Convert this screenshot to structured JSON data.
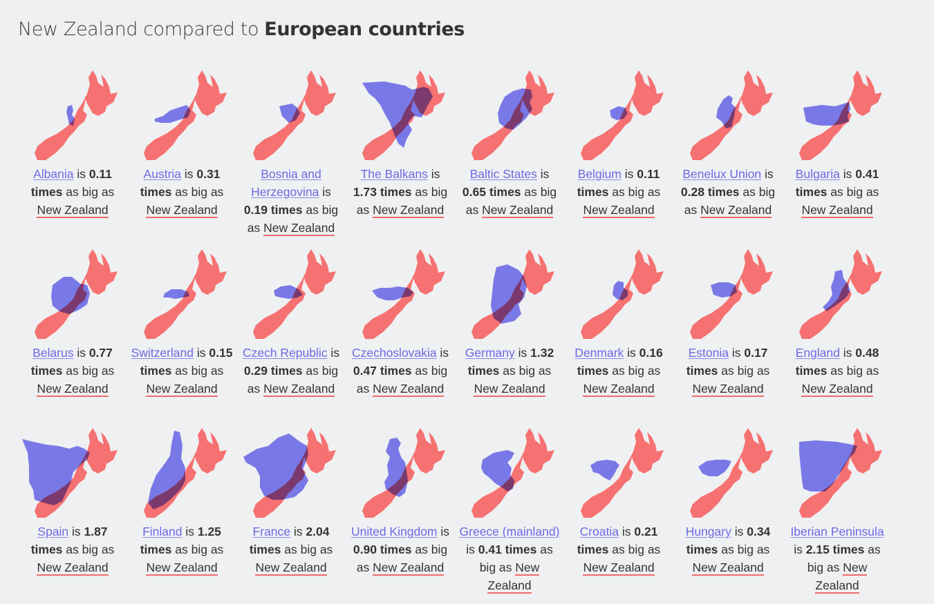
{
  "page": {
    "title_prefix": "New Zealand compared to ",
    "title_bold": "European countries"
  },
  "labels": {
    "is": " is ",
    "times_as_big_as": " as big as ",
    "reference": "New Zealand"
  },
  "colors": {
    "new_zealand": "#f67171",
    "country": "#6b68f4",
    "link": "#6c69e6",
    "underline": "#f06a6a"
  },
  "countries": [
    {
      "name": "Albania",
      "factor": "0.11 times"
    },
    {
      "name": "Austria",
      "factor": "0.31 times"
    },
    {
      "name": "Bosnia and Herzegovina",
      "factor": "0.19 times"
    },
    {
      "name": "The Balkans",
      "factor": "1.73 times"
    },
    {
      "name": "Baltic States",
      "factor": "0.65 times"
    },
    {
      "name": "Belgium",
      "factor": "0.11 times"
    },
    {
      "name": "Benelux Union",
      "factor": "0.28 times"
    },
    {
      "name": "Bulgaria",
      "factor": "0.41 times"
    },
    {
      "name": "Belarus",
      "factor": "0.77 times"
    },
    {
      "name": "Switzerland",
      "factor": "0.15 times"
    },
    {
      "name": "Czech Republic",
      "factor": "0.29 times"
    },
    {
      "name": "Czechoslovakia",
      "factor": "0.47 times"
    },
    {
      "name": "Germany",
      "factor": "1.32 times"
    },
    {
      "name": "Denmark",
      "factor": "0.16 times"
    },
    {
      "name": "Estonia",
      "factor": "0.17 times"
    },
    {
      "name": "England",
      "factor": "0.48 times"
    },
    {
      "name": "Spain",
      "factor": "1.87 times"
    },
    {
      "name": "Finland",
      "factor": "1.25 times"
    },
    {
      "name": "France",
      "factor": "2.04 times"
    },
    {
      "name": "United Kingdom",
      "factor": "0.90 times"
    },
    {
      "name": "Greece (mainland)",
      "factor": "0.41 times"
    },
    {
      "name": "Croatia",
      "factor": "0.21 times"
    },
    {
      "name": "Hungary",
      "factor": "0.34 times"
    },
    {
      "name": "Iberian Peninsula",
      "factor": "2.15 times"
    }
  ]
}
